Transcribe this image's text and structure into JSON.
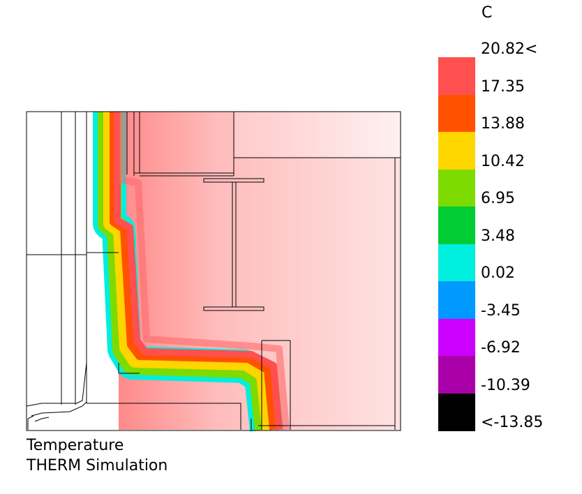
{
  "caption": {
    "line1": "Temperature",
    "line2": "THERM Simulation"
  },
  "legend": {
    "unit": "C",
    "colors": [
      "#ff4f4f",
      "#ff5100",
      "#ffd500",
      "#7ddb00",
      "#00cc33",
      "#00eedd",
      "#0099ff",
      "#cc00ff",
      "#aa00aa",
      "#000000"
    ],
    "labels": [
      "20.82<",
      "17.35",
      "13.88",
      "10.42",
      "6.95",
      "3.48",
      "0.02",
      "-3.45",
      "-6.92",
      "-10.39",
      "<-13.85"
    ]
  },
  "colors": {
    "warm_interior": "#ffd0d0",
    "outline": "#000000"
  }
}
